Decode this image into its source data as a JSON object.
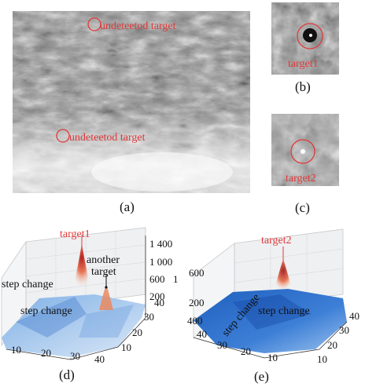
{
  "captions": {
    "a": "(a)",
    "b": "(b)",
    "c": "(c)",
    "d": "(d)",
    "e": "(e)"
  },
  "panel_a": {
    "annotations": [
      "undeteetod target",
      "undeteetod target"
    ]
  },
  "panel_b": {
    "annotation": "target1"
  },
  "panel_c": {
    "annotation": "target2"
  },
  "panel_d": {
    "peak_label": "target1",
    "another_label_1": "another",
    "another_label_2": "target",
    "step_label_1": "step change",
    "step_label_2": "step change",
    "z_ticks": [
      "1 400",
      "1 000",
      "600",
      "200",
      "1"
    ],
    "y_ticks": [
      "40",
      "30",
      "20",
      "10"
    ],
    "x_ticks": [
      "10",
      "20",
      "30",
      "40"
    ]
  },
  "panel_e": {
    "peak_label": "target2",
    "step_label_1": "step change",
    "step_label_2": "step change",
    "z_ticks": [
      "600",
      "200",
      "400"
    ],
    "y_ticks": [
      "40",
      "30",
      "20",
      "10"
    ],
    "x_ticks": [
      "40",
      "30",
      "20",
      "10"
    ]
  },
  "colors": {
    "annotation": "#e03a3a",
    "surface_low": "#1f5fbf",
    "surface_peak": "#c0392b"
  }
}
